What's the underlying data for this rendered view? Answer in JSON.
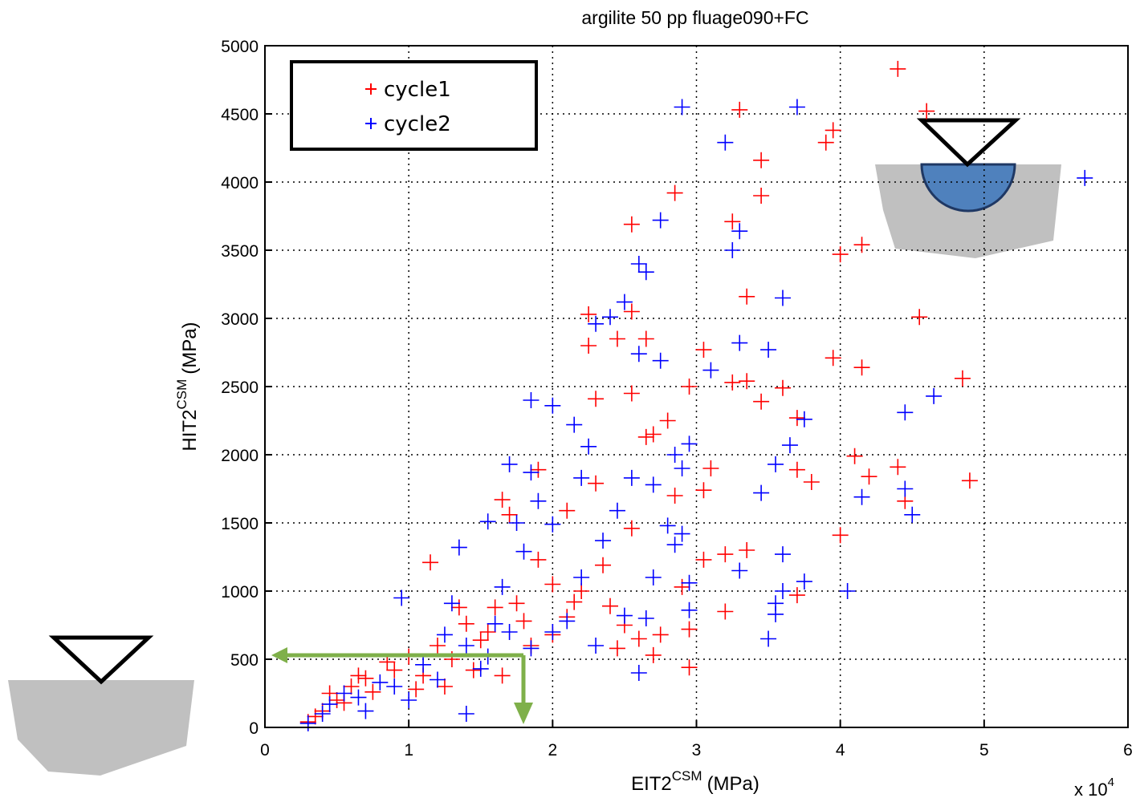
{
  "chart_data": {
    "type": "scatter",
    "title": "argilite 50 pp fluage090+FC",
    "x_label": {
      "main": "EIT2",
      "sup": "CSM",
      "unit": "(MPa)"
    },
    "y_label": {
      "main": "HIT2",
      "sup": "CSM",
      "unit": "(MPa)"
    },
    "x_scale_label": {
      "base": "x 10",
      "exponent": "4"
    },
    "xlim": [
      0,
      6
    ],
    "ylim": [
      0,
      5000
    ],
    "xticks": [
      0,
      1,
      2,
      3,
      4,
      5,
      6
    ],
    "yticks": [
      0,
      500,
      1000,
      1500,
      2000,
      2500,
      3000,
      3500,
      4000,
      4500,
      5000
    ],
    "grid": true,
    "legend": "upper left",
    "series": [
      {
        "name": "cycle1",
        "color": "#ff0000",
        "x": [
          4.4,
          4.6,
          3.3,
          3.95,
          3.9,
          3.45,
          3.45,
          2.85,
          3.25,
          2.55,
          4.15,
          4.0,
          3.35,
          2.55,
          2.25,
          4.55,
          2.25,
          2.45,
          2.65,
          3.05,
          3.95,
          4.15,
          4.85,
          3.25,
          3.35,
          2.95,
          3.6,
          3.45,
          2.3,
          2.55,
          2.8,
          3.7,
          2.7,
          2.65,
          1.9,
          3.1,
          3.7,
          4.1,
          4.4,
          4.2,
          3.8,
          4.9,
          2.3,
          1.65,
          4.45,
          2.85,
          3.05,
          2.1,
          1.7,
          4.0,
          3.35,
          3.05,
          3.2,
          1.15,
          2.9,
          3.7,
          2.95,
          2.95,
          2.6,
          2.75,
          1.75,
          2.0,
          2.2,
          2.4,
          1.6,
          1.4,
          1.2,
          1.0,
          0.85,
          0.6,
          0.5,
          0.4,
          0.7,
          0.9,
          1.1,
          1.3,
          1.5,
          1.8,
          2.1,
          2.5,
          1.9,
          2.35,
          2.15,
          1.55,
          0.75,
          0.55,
          0.35,
          0.3,
          1.25,
          1.45,
          1.05,
          2.45,
          2.7,
          3.2,
          1.65,
          1.85,
          2.0,
          0.65,
          0.45,
          1.35,
          2.55
        ],
        "values": [
          4830,
          4520,
          4530,
          4380,
          4290,
          4160,
          3900,
          3920,
          3710,
          3690,
          3540,
          3470,
          3160,
          3050,
          3030,
          3010,
          2800,
          2850,
          2850,
          2770,
          2710,
          2640,
          2560,
          2530,
          2540,
          2500,
          2490,
          2390,
          2410,
          2450,
          2250,
          2270,
          2150,
          2130,
          1890,
          1900,
          1890,
          1990,
          1910,
          1840,
          1800,
          1810,
          1790,
          1670,
          1660,
          1700,
          1740,
          1590,
          1560,
          1410,
          1300,
          1230,
          1270,
          1210,
          1030,
          970,
          440,
          720,
          650,
          680,
          910,
          1050,
          1000,
          890,
          880,
          760,
          600,
          520,
          480,
          300,
          200,
          120,
          360,
          420,
          380,
          500,
          640,
          780,
          810,
          750,
          1230,
          1190,
          920,
          700,
          260,
          180,
          80,
          40,
          300,
          420,
          280,
          580,
          530,
          850,
          380,
          600,
          680,
          380,
          250,
          880,
          1460
        ]
      },
      {
        "name": "cycle2",
        "color": "#0000ff",
        "x": [
          2.9,
          3.7,
          3.2,
          5.7,
          2.75,
          3.3,
          3.25,
          2.6,
          2.65,
          3.6,
          2.5,
          2.4,
          2.3,
          3.3,
          3.5,
          2.6,
          2.75,
          3.1,
          4.65,
          4.45,
          1.85,
          2.0,
          3.75,
          2.15,
          2.25,
          2.95,
          3.65,
          2.85,
          1.7,
          1.85,
          2.9,
          3.55,
          2.2,
          2.55,
          2.7,
          3.45,
          4.45,
          4.15,
          1.9,
          2.45,
          4.5,
          2.8,
          1.55,
          1.75,
          2.0,
          3.6,
          3.3,
          2.85,
          2.9,
          3.55,
          3.55,
          3.75,
          4.05,
          3.6,
          3.5,
          2.95,
          0.95,
          1.35,
          1.8,
          2.6,
          2.0,
          2.3,
          1.4,
          1.1,
          0.8,
          0.55,
          0.4,
          0.3,
          0.45,
          0.65,
          0.9,
          1.2,
          1.55,
          1.7,
          1.85,
          2.1,
          2.5,
          1.4,
          1.6,
          1.25,
          2.7,
          2.2,
          1.3,
          0.7,
          1.0,
          1.5,
          2.65,
          2.95,
          1.65,
          2.35
        ],
        "values": [
          4550,
          4550,
          4290,
          4030,
          3720,
          3640,
          3500,
          3400,
          3340,
          3150,
          3120,
          3010,
          2960,
          2820,
          2770,
          2740,
          2690,
          2620,
          2430,
          2310,
          2400,
          2360,
          2260,
          2220,
          2060,
          2080,
          2070,
          2000,
          1930,
          1870,
          1900,
          1930,
          1830,
          1830,
          1780,
          1720,
          1750,
          1690,
          1660,
          1590,
          1560,
          1480,
          1510,
          1500,
          1490,
          1270,
          1150,
          1340,
          1420,
          830,
          910,
          1070,
          1000,
          1000,
          650,
          860,
          950,
          1320,
          1290,
          400,
          700,
          600,
          600,
          460,
          330,
          250,
          100,
          30,
          170,
          220,
          300,
          350,
          520,
          700,
          580,
          780,
          820,
          100,
          760,
          680,
          1100,
          1100,
          910,
          120,
          200,
          430,
          800,
          1060,
          1030,
          1370
        ]
      }
    ]
  }
}
